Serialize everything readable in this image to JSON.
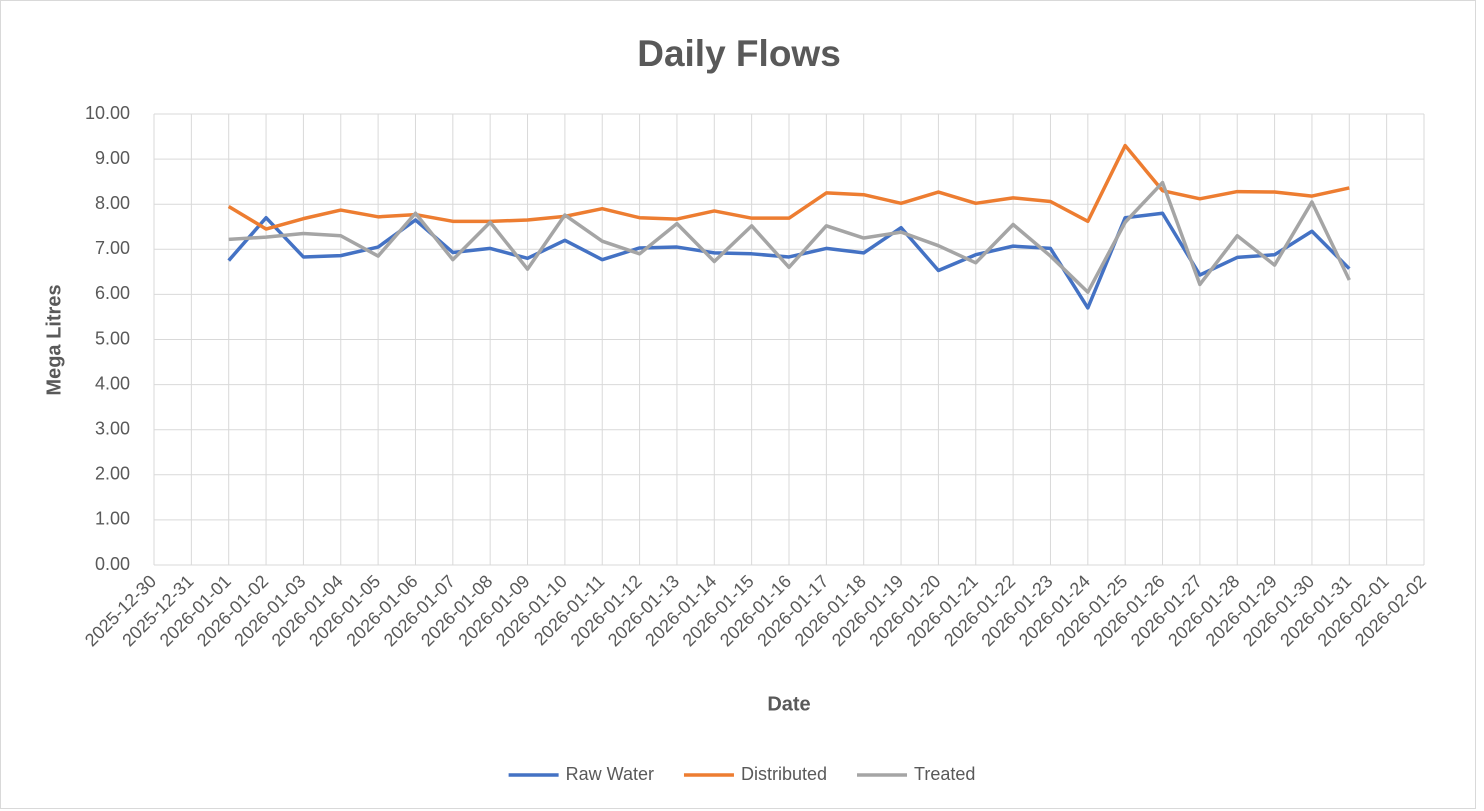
{
  "chart_data": {
    "type": "line",
    "title": "Daily Flows",
    "x_label": "Date",
    "y_label": "Mega Litres",
    "x": [
      "2025-12-30",
      "2025-12-31",
      "2026-01-01",
      "2026-01-02",
      "2026-01-03",
      "2026-01-04",
      "2026-01-05",
      "2026-01-06",
      "2026-01-07",
      "2026-01-08",
      "2026-01-09",
      "2026-01-10",
      "2026-01-11",
      "2026-01-12",
      "2026-01-13",
      "2026-01-14",
      "2026-01-15",
      "2026-01-16",
      "2026-01-17",
      "2026-01-18",
      "2026-01-19",
      "2026-01-20",
      "2026-01-21",
      "2026-01-22",
      "2026-01-23",
      "2026-01-24",
      "2026-01-25",
      "2026-01-26",
      "2026-01-27",
      "2026-01-28",
      "2026-01-29",
      "2026-01-30",
      "2026-01-31",
      "2026-02-01",
      "2026-02-02"
    ],
    "series": [
      {
        "name": "Raw Water",
        "color": "#4472c4",
        "values": [
          null,
          null,
          6.75,
          7.7,
          6.83,
          6.86,
          7.05,
          7.65,
          6.93,
          7.02,
          6.8,
          7.2,
          6.77,
          7.03,
          7.05,
          6.92,
          6.9,
          6.83,
          7.02,
          6.92,
          7.48,
          6.53,
          6.88,
          7.07,
          7.02,
          5.7,
          7.7,
          7.8,
          6.43,
          6.82,
          6.88,
          7.4,
          6.57,
          null,
          null
        ]
      },
      {
        "name": "Distributed",
        "color": "#ed7d31",
        "values": [
          null,
          null,
          7.95,
          7.45,
          7.68,
          7.87,
          7.72,
          7.77,
          7.62,
          7.62,
          7.65,
          7.73,
          7.9,
          7.7,
          7.67,
          7.85,
          7.69,
          7.69,
          8.25,
          8.21,
          8.02,
          8.27,
          8.02,
          8.14,
          8.06,
          7.62,
          9.3,
          8.3,
          8.12,
          8.28,
          8.27,
          8.18,
          8.36,
          null,
          null
        ]
      },
      {
        "name": "Treated",
        "color": "#a5a5a5",
        "values": [
          null,
          null,
          7.22,
          7.27,
          7.35,
          7.3,
          6.85,
          7.8,
          6.77,
          7.6,
          6.56,
          7.76,
          7.18,
          6.9,
          7.57,
          6.73,
          7.52,
          6.6,
          7.52,
          7.25,
          7.38,
          7.08,
          6.7,
          7.55,
          6.85,
          6.05,
          7.6,
          8.48,
          6.22,
          7.3,
          6.65,
          8.05,
          6.32,
          null,
          null
        ]
      }
    ],
    "ylim": [
      0,
      10
    ],
    "yticks": [
      {
        "value": 0,
        "label": "0.00"
      },
      {
        "value": 1,
        "label": "1.00"
      },
      {
        "value": 2,
        "label": "2.00"
      },
      {
        "value": 3,
        "label": "3.00"
      },
      {
        "value": 4,
        "label": "4.00"
      },
      {
        "value": 5,
        "label": "5.00"
      },
      {
        "value": 6,
        "label": "6.00"
      },
      {
        "value": 7,
        "label": "7.00"
      },
      {
        "value": 8,
        "label": "8.00"
      },
      {
        "value": 9,
        "label": "9.00"
      },
      {
        "value": 10,
        "label": "10.00"
      }
    ],
    "grid": true,
    "legend": "bottom"
  }
}
